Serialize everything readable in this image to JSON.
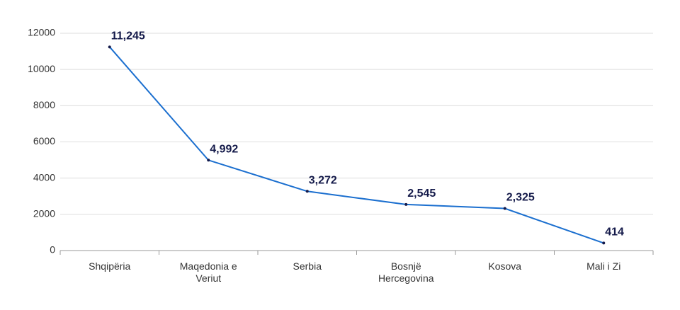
{
  "chart_data": {
    "type": "line",
    "categories": [
      "Shqipëria",
      "Maqedonia e Veriut",
      "Serbia",
      "Bosnjë Hercegovina",
      "Kosova",
      "Mali i Zi"
    ],
    "series": [
      {
        "color": "#1b6fcf",
        "values": [
          11245,
          4992,
          3272,
          2545,
          2325,
          414
        ],
        "value_labels": [
          "11,245",
          "4,992",
          "3,272",
          "2,545",
          "2,325",
          "414"
        ]
      }
    ],
    "ylim": [
      0,
      12000
    ],
    "yticks": [
      0,
      2000,
      4000,
      6000,
      8000,
      10000,
      12000
    ],
    "grid": true
  }
}
